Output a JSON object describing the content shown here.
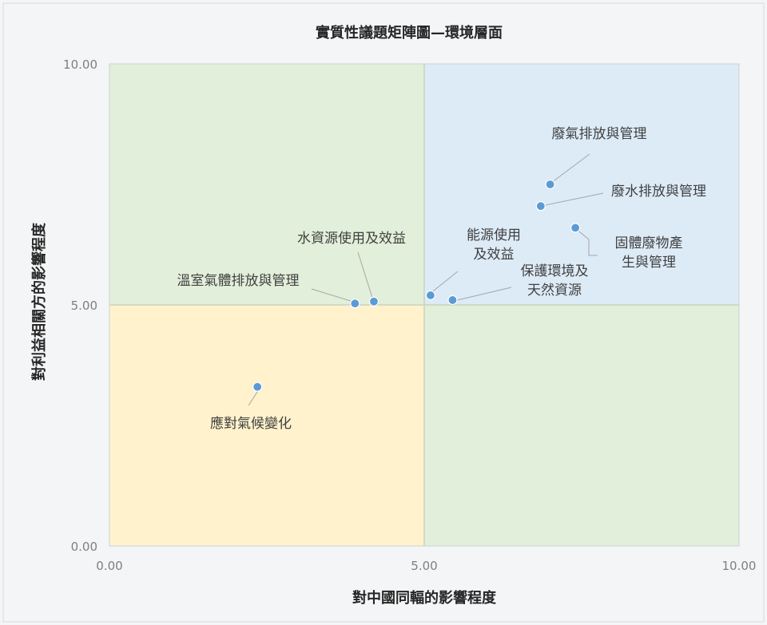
{
  "chart_data": {
    "type": "scatter",
    "title": "實質性議題矩陣圖—環境層面",
    "xlabel": "對中國同輻的影響程度",
    "ylabel": "對利益相關方的影響程度",
    "xlim": [
      0,
      10
    ],
    "ylim": [
      0,
      10
    ],
    "x_ticks": [
      "0.00",
      "5.00",
      "10.00"
    ],
    "y_ticks": [
      "0.00",
      "5.00",
      "10.00"
    ],
    "grid": false,
    "quadrant_colors": {
      "top_left": "#e2efda",
      "top_right": "#ddebf7",
      "bottom_left": "#fff2cc",
      "bottom_right": "#e2efda"
    },
    "point_color": "#5b9bd5",
    "points": [
      {
        "label": "廢氣排放與管理",
        "x": 7.0,
        "y": 7.5
      },
      {
        "label": "廢水排放與管理",
        "x": 6.85,
        "y": 7.05
      },
      {
        "label": "固體廢物產生與管理",
        "x": 7.4,
        "y": 6.6
      },
      {
        "label": "能源使用及效益",
        "x": 5.1,
        "y": 5.2
      },
      {
        "label": "保護環境及天然資源",
        "x": 5.45,
        "y": 5.1
      },
      {
        "label": "水資源使用及效益",
        "x": 4.2,
        "y": 5.07
      },
      {
        "label": "溫室氣體排放與管理",
        "x": 3.9,
        "y": 5.03
      },
      {
        "label": "應對氣候變化",
        "x": 2.35,
        "y": 3.3
      }
    ],
    "label_lines": [
      [
        "廢氣排放與管理"
      ],
      [
        "廢水排放與管理"
      ],
      [
        "固體廢物產",
        "生與管理"
      ],
      [
        "能源使用",
        "及效益"
      ],
      [
        "保護環境及",
        "天然資源"
      ],
      [
        "水資源使用及效益"
      ],
      [
        "溫室氣體排放與管理"
      ],
      [
        "應對氣候變化"
      ]
    ]
  }
}
